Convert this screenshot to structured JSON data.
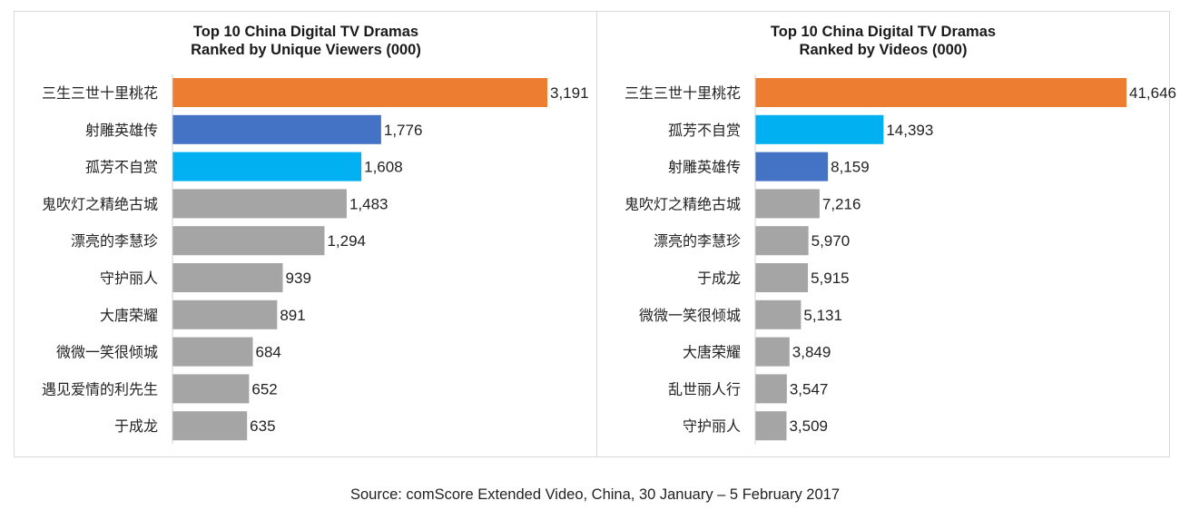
{
  "colors": {
    "orange": "#ed7d31",
    "blue": "#4472c4",
    "cyan": "#00b0f0",
    "gray": "#a5a5a5"
  },
  "chart_data": [
    {
      "type": "bar",
      "orientation": "horizontal",
      "title_lines": [
        "Top 10 China Digital TV Dramas",
        "Ranked by Unique Viewers (000)"
      ],
      "categories": [
        "三生三世十里桃花",
        "射雕英雄传",
        "孤芳不自赏",
        "鬼吹灯之精绝古城",
        "漂亮的李慧珍",
        "守护丽人",
        "大唐荣耀",
        "微微一笑很倾城",
        "遇见爱情的利先生",
        "于成龙"
      ],
      "values": [
        3191,
        1776,
        1608,
        1483,
        1294,
        939,
        891,
        684,
        652,
        635
      ],
      "value_labels": [
        "3,191",
        "1,776",
        "1,608",
        "1,483",
        "1,294",
        "939",
        "891",
        "684",
        "652",
        "635"
      ],
      "bar_colors": [
        "orange",
        "blue",
        "cyan",
        "gray",
        "gray",
        "gray",
        "gray",
        "gray",
        "gray",
        "gray"
      ],
      "xlim": [
        0,
        3191
      ],
      "grid": false,
      "legend": "none"
    },
    {
      "type": "bar",
      "orientation": "horizontal",
      "title_lines": [
        "Top 10 China Digital TV Dramas",
        "Ranked by Videos (000)"
      ],
      "categories": [
        "三生三世十里桃花",
        "孤芳不自赏",
        "射雕英雄传",
        "鬼吹灯之精绝古城",
        "漂亮的李慧珍",
        "于成龙",
        "微微一笑很倾城",
        "大唐荣耀",
        "乱世丽人行",
        "守护丽人"
      ],
      "values": [
        41646,
        14393,
        8159,
        7216,
        5970,
        5915,
        5131,
        3849,
        3547,
        3509
      ],
      "value_labels": [
        "41,646",
        "14,393",
        "8,159",
        "7,216",
        "5,970",
        "5,915",
        "5,131",
        "3,849",
        "3,547",
        "3,509"
      ],
      "bar_colors": [
        "orange",
        "cyan",
        "blue",
        "gray",
        "gray",
        "gray",
        "gray",
        "gray",
        "gray",
        "gray"
      ],
      "xlim": [
        0,
        41646
      ],
      "grid": false,
      "legend": "none"
    }
  ],
  "source": "Source: comScore Extended Video, China, 30 January – 5 February 2017"
}
